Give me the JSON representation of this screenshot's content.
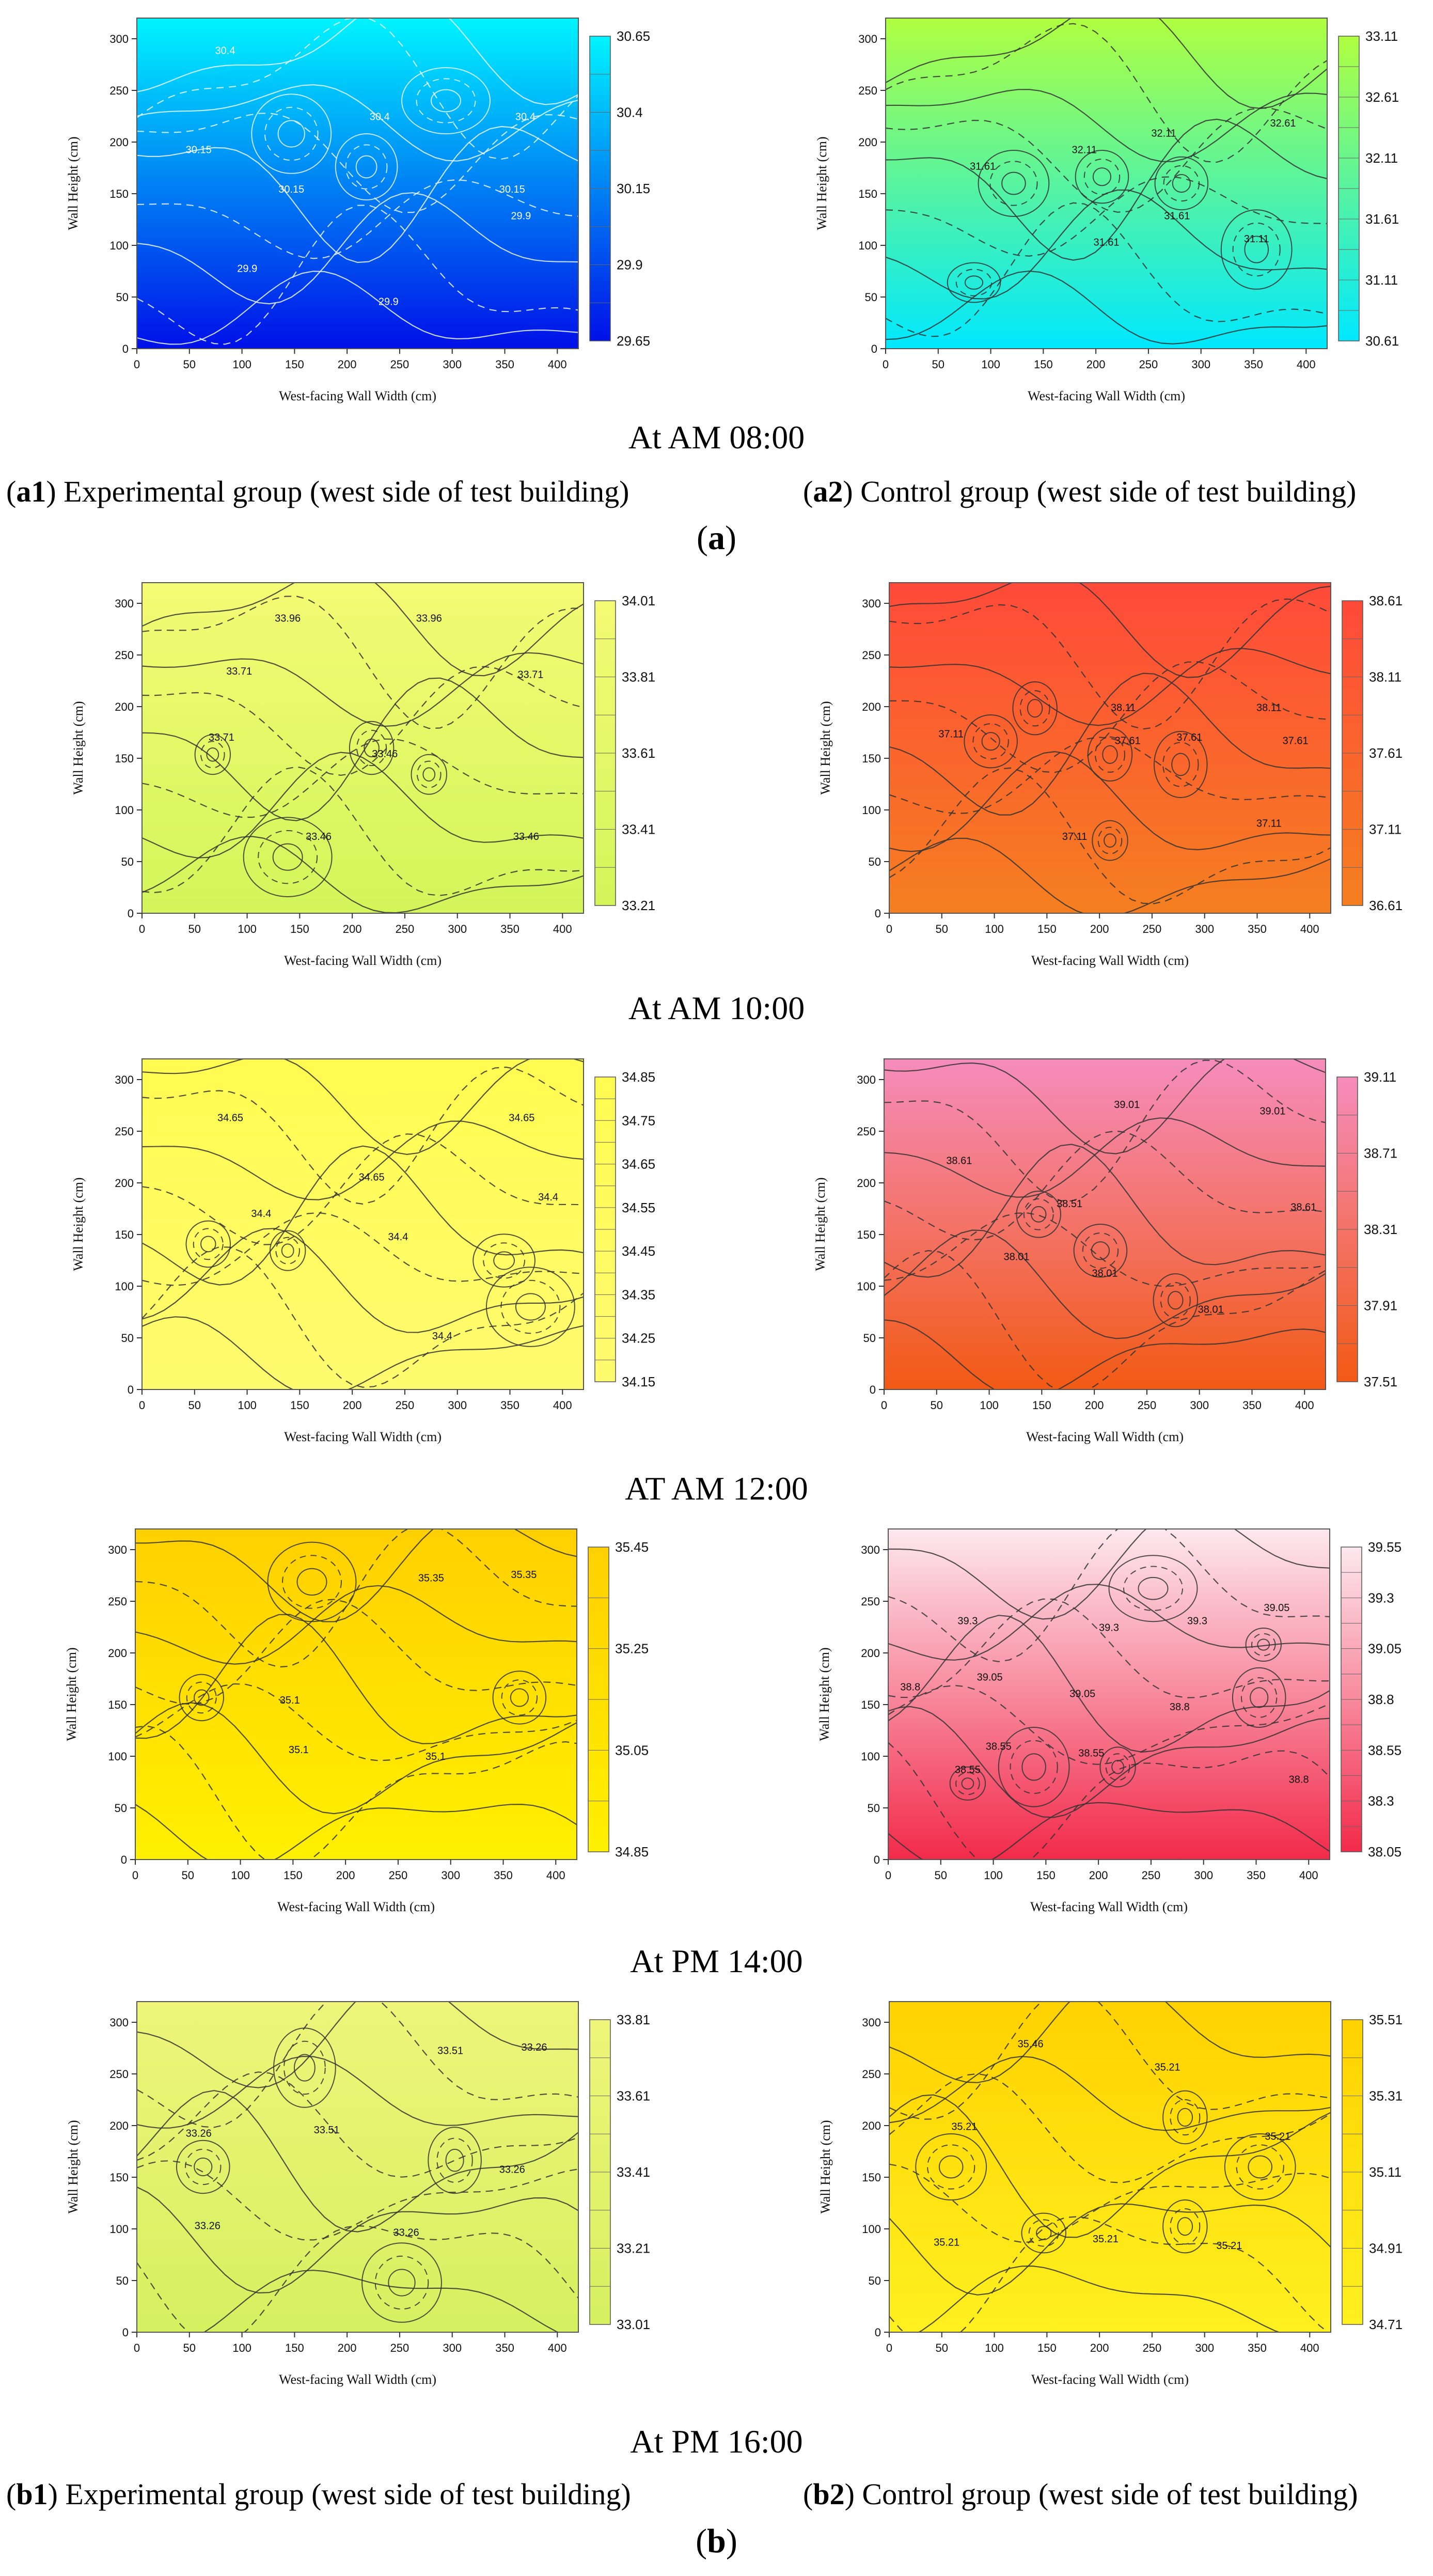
{
  "figure": {
    "time_labels": [
      "At AM 08:00",
      "At AM 10:00",
      "AT AM 12:00",
      "At PM 14:00",
      "At PM 16:00"
    ],
    "captions_top": {
      "left_bold": "a1",
      "left_text": ") Experimental group (west side of test building)",
      "right_bold": "a2",
      "right_text": ") Control group (west side of test building)",
      "panel_label_bold": "a"
    },
    "captions_bottom": {
      "left_bold": "b1",
      "left_text": ") Experimental group (west side of test building)",
      "right_bold": "b2",
      "right_text": ") Control group (west side of test building)",
      "panel_label_bold": "b"
    }
  },
  "chart_data": [
    {
      "id": "exp-0800",
      "type": "heatmap",
      "group": "Experimental",
      "time": "At AM 08:00",
      "xlabel": "West-facing Wall Width (cm)",
      "ylabel": "Wall Height (cm)",
      "xlim": [
        0,
        420
      ],
      "ylim": [
        0,
        320
      ],
      "xticks": [
        0,
        50,
        100,
        150,
        200,
        250,
        300,
        350,
        400
      ],
      "yticks": [
        0,
        50,
        100,
        150,
        200,
        250,
        300
      ],
      "colorbar": [
        "30.65",
        "30.4",
        "30.15",
        "29.9",
        "29.65"
      ],
      "color_low": "#0010e8",
      "color_high": "#00f4ff",
      "contour_labels": [
        "30.4",
        "30.4",
        "30.4",
        "30.15",
        "30.15",
        "30.15",
        "29.9",
        "29.9",
        "29.9"
      ]
    },
    {
      "id": "ctl-0800",
      "type": "heatmap",
      "group": "Control",
      "time": "At AM 08:00",
      "xlabel": "West-facing Wall Width (cm)",
      "ylabel": "Wall Height (cm)",
      "xlim": [
        0,
        420
      ],
      "ylim": [
        0,
        320
      ],
      "xticks": [
        0,
        50,
        100,
        150,
        200,
        250,
        300,
        350,
        400
      ],
      "yticks": [
        0,
        50,
        100,
        150,
        200,
        250,
        300
      ],
      "colorbar": [
        "33.11",
        "32.61",
        "32.11",
        "31.61",
        "31.11",
        "30.61"
      ],
      "color_low": "#00e8ff",
      "color_high": "#b0ff40",
      "contour_labels": [
        "32.61",
        "32.11",
        "32.11",
        "31.61",
        "31.61",
        "31.61",
        "31.11"
      ]
    },
    {
      "id": "exp-1000",
      "type": "heatmap",
      "group": "Experimental",
      "time": "At AM 10:00",
      "xlabel": "West-facing Wall Width (cm)",
      "ylabel": "Wall Height (cm)",
      "xlim": [
        0,
        420
      ],
      "ylim": [
        0,
        320
      ],
      "xticks": [
        0,
        50,
        100,
        150,
        200,
        250,
        300,
        350,
        400
      ],
      "yticks": [
        0,
        50,
        100,
        150,
        200,
        250,
        300
      ],
      "colorbar": [
        "34.01",
        "33.81",
        "33.61",
        "33.41",
        "33.21"
      ],
      "color_low": "#d2f55a",
      "color_high": "#f4fb74",
      "contour_labels": [
        "33.96",
        "33.96",
        "33.71",
        "33.71",
        "33.71",
        "33.46",
        "33.46",
        "33.46"
      ]
    },
    {
      "id": "ctl-1000",
      "type": "heatmap",
      "group": "Control",
      "time": "At AM 10:00",
      "xlabel": "West-facing Wall Width (cm)",
      "ylabel": "Wall Height (cm)",
      "xlim": [
        0,
        420
      ],
      "ylim": [
        0,
        320
      ],
      "xticks": [
        0,
        50,
        100,
        150,
        200,
        250,
        300,
        350,
        400
      ],
      "yticks": [
        0,
        50,
        100,
        150,
        200,
        250,
        300
      ],
      "colorbar": [
        "38.61",
        "38.11",
        "37.61",
        "37.11",
        "36.61"
      ],
      "color_low": "#f57f20",
      "color_high": "#ff4a3a",
      "contour_labels": [
        "38.11",
        "38.11",
        "37.61",
        "37.61",
        "37.61",
        "37.11",
        "37.11",
        "37.11"
      ]
    },
    {
      "id": "exp-1200",
      "type": "heatmap",
      "group": "Experimental",
      "time": "AT AM 12:00",
      "xlabel": "West-facing Wall Width (cm)",
      "ylabel": "Wall Height (cm)",
      "xlim": [
        0,
        420
      ],
      "ylim": [
        0,
        320
      ],
      "xticks": [
        0,
        50,
        100,
        150,
        200,
        250,
        300,
        350,
        400
      ],
      "yticks": [
        0,
        50,
        100,
        150,
        200,
        250,
        300
      ],
      "colorbar": [
        "34.85",
        "34.75",
        "34.65",
        "34.55",
        "34.45",
        "34.35",
        "34.25",
        "34.15"
      ],
      "color_low": "#fffb70",
      "color_high": "#fffb50",
      "contour_labels": [
        "34.65",
        "34.65",
        "34.65",
        "34.4",
        "34.4",
        "34.4",
        "34.4"
      ]
    },
    {
      "id": "ctl-1200",
      "type": "heatmap",
      "group": "Control",
      "time": "AT AM 12:00",
      "xlabel": "West-facing Wall Width (cm)",
      "ylabel": "Wall Height (cm)",
      "xlim": [
        0,
        420
      ],
      "ylim": [
        0,
        320
      ],
      "xticks": [
        0,
        50,
        100,
        150,
        200,
        250,
        300,
        350,
        400
      ],
      "yticks": [
        0,
        50,
        100,
        150,
        200,
        250,
        300
      ],
      "colorbar": [
        "39.11",
        "38.71",
        "38.31",
        "37.91",
        "37.51"
      ],
      "color_low": "#f25a14",
      "color_high": "#f58cbc",
      "contour_labels": [
        "39.01",
        "39.01",
        "38.61",
        "38.61",
        "38.51",
        "38.01",
        "38.01",
        "38.01"
      ]
    },
    {
      "id": "exp-1400",
      "type": "heatmap",
      "group": "Experimental",
      "time": "At PM 14:00",
      "xlabel": "West-facing Wall Width (cm)",
      "ylabel": "Wall Height (cm)",
      "xlim": [
        0,
        420
      ],
      "ylim": [
        0,
        320
      ],
      "xticks": [
        0,
        50,
        100,
        150,
        200,
        250,
        300,
        350,
        400
      ],
      "yticks": [
        0,
        50,
        100,
        150,
        200,
        250,
        300
      ],
      "colorbar": [
        "35.45",
        "35.25",
        "35.05",
        "34.85"
      ],
      "color_low": "#fff000",
      "color_high": "#ffd000",
      "contour_labels": [
        "35.35",
        "35.35",
        "35.1",
        "35.1",
        "35.1"
      ]
    },
    {
      "id": "ctl-1400",
      "type": "heatmap",
      "group": "Control",
      "time": "At PM 14:00",
      "xlabel": "West-facing Wall Width (cm)",
      "ylabel": "Wall Height (cm)",
      "xlim": [
        0,
        420
      ],
      "ylim": [
        0,
        320
      ],
      "xticks": [
        0,
        50,
        100,
        150,
        200,
        250,
        300,
        350,
        400
      ],
      "yticks": [
        0,
        50,
        100,
        150,
        200,
        250,
        300
      ],
      "colorbar": [
        "39.55",
        "39.3",
        "39.05",
        "38.8",
        "38.55",
        "38.3",
        "38.05"
      ],
      "color_low": "#f22a4a",
      "color_high": "#fde8ef",
      "contour_labels": [
        "39.3",
        "39.3",
        "39.3",
        "39.05",
        "39.05",
        "39.05",
        "38.8",
        "38.8",
        "38.8",
        "38.55",
        "38.55",
        "38.55"
      ]
    },
    {
      "id": "exp-1600",
      "type": "heatmap",
      "group": "Experimental",
      "time": "At PM 16:00",
      "xlabel": "West-facing Wall Width (cm)",
      "ylabel": "Wall Height (cm)",
      "xlim": [
        0,
        420
      ],
      "ylim": [
        0,
        320
      ],
      "xticks": [
        0,
        50,
        100,
        150,
        200,
        250,
        300,
        350,
        400
      ],
      "yticks": [
        0,
        50,
        100,
        150,
        200,
        250,
        300
      ],
      "colorbar": [
        "33.81",
        "33.61",
        "33.41",
        "33.21",
        "33.01"
      ],
      "color_low": "#d6f060",
      "color_high": "#eef57a",
      "contour_labels": [
        "33.51",
        "33.51",
        "33.26",
        "33.26",
        "33.26",
        "33.26",
        "33.26"
      ]
    },
    {
      "id": "ctl-1600",
      "type": "heatmap",
      "group": "Control",
      "time": "At PM 16:00",
      "xlabel": "West-facing Wall Width (cm)",
      "ylabel": "Wall Height (cm)",
      "xlim": [
        0,
        420
      ],
      "ylim": [
        0,
        320
      ],
      "xticks": [
        0,
        50,
        100,
        150,
        200,
        250,
        300,
        350,
        400
      ],
      "yticks": [
        0,
        50,
        100,
        150,
        200,
        250,
        300
      ],
      "colorbar": [
        "35.51",
        "35.31",
        "35.11",
        "34.91",
        "34.71"
      ],
      "color_low": "#fff020",
      "color_high": "#ffd200",
      "contour_labels": [
        "35.46",
        "35.21",
        "35.21",
        "35.21",
        "35.21",
        "35.21",
        "35.21"
      ]
    }
  ]
}
